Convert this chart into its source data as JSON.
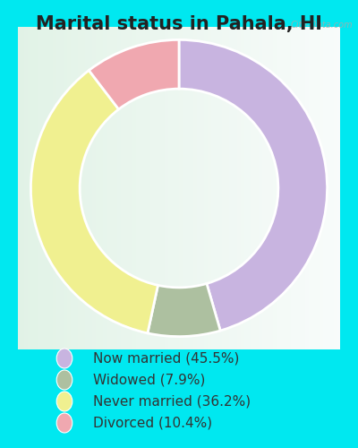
{
  "title": "Marital status in Pahala, HI",
  "values": [
    45.5,
    7.9,
    36.2,
    10.4
  ],
  "labels": [
    "Now married (45.5%)",
    "Widowed (7.9%)",
    "Never married (36.2%)",
    "Divorced (10.4%)"
  ],
  "colors": [
    "#c8b4e0",
    "#adc0a0",
    "#f0f090",
    "#f0a8b0"
  ],
  "outer_bg": "#00e8f0",
  "chart_panel_color": "#e8f5ee",
  "title_fontsize": 15,
  "legend_fontsize": 11,
  "start_angle": 90,
  "watermark": "City-Data.com"
}
